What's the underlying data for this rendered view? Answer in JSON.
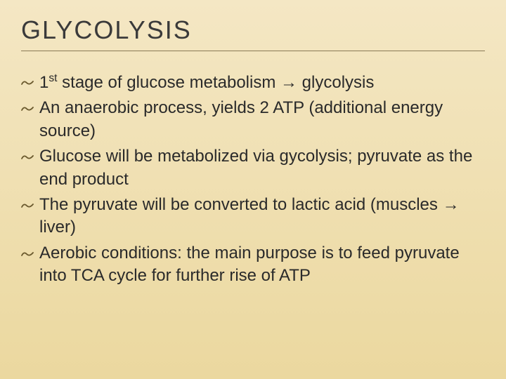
{
  "slide": {
    "title": "GLYCOLYSIS",
    "background_gradient_top": "#f4e7c4",
    "background_gradient_bottom": "#ebd89f",
    "title_color": "#3a3a3a",
    "title_fontsize": 36,
    "underline_color": "#8a7a55",
    "bullet_glyph": "་",
    "bullet_color": "#6b5a2e",
    "body_fontsize": 24,
    "body_color": "#2a2a2a",
    "bullets": [
      {
        "html": "1<sup>st</sup> stage of glucose metabolism → glycolysis"
      },
      {
        "html": "An anaerobic process, yields 2 ATP (additional energy source)"
      },
      {
        "html": "Glucose will be metabolized via gycolysis; pyruvate as the end product"
      },
      {
        "html": "The pyruvate will be converted to lactic acid (muscles → liver)"
      },
      {
        "html": "Aerobic conditions: the main purpose is to feed pyruvate into TCA cycle for further rise of ATP"
      }
    ]
  }
}
